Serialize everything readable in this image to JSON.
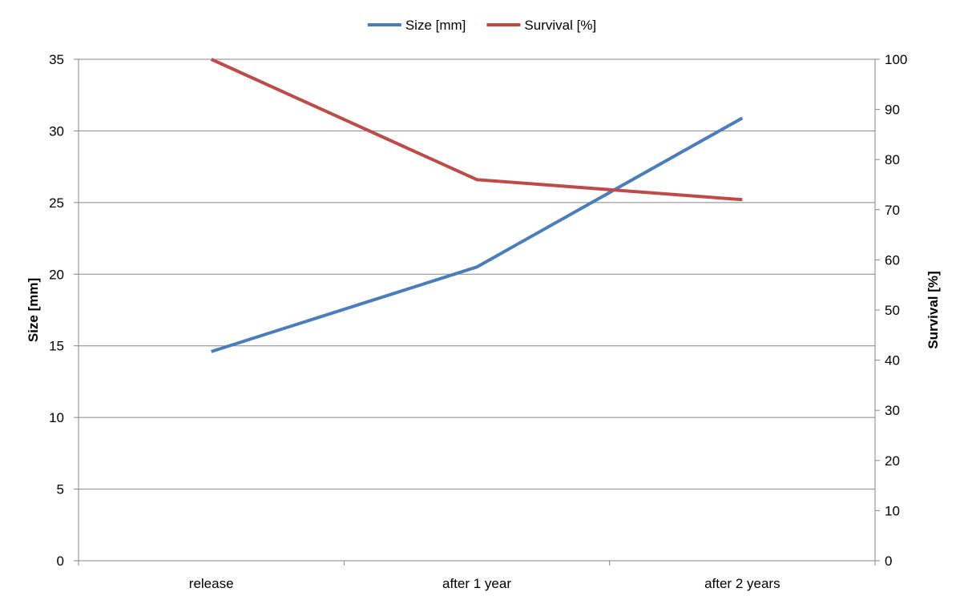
{
  "chart_data": {
    "type": "line",
    "title": "",
    "categories": [
      "release",
      "after 1 year",
      "after 2 years"
    ],
    "y_left": {
      "label": "Size [mm]",
      "ylim": [
        0,
        35
      ],
      "ticks": [
        "0",
        "5",
        "10",
        "15",
        "20",
        "25",
        "30",
        "35"
      ]
    },
    "y_right": {
      "label": "Survival [%]",
      "ylim": [
        0,
        100
      ],
      "ticks": [
        "0",
        "10",
        "20",
        "30",
        "40",
        "50",
        "60",
        "70",
        "80",
        "90",
        "100"
      ]
    },
    "series": [
      {
        "name": "Size [mm]",
        "axis": "left",
        "color": "#4a7ebb",
        "values": [
          14.6,
          20.5,
          30.9
        ]
      },
      {
        "name": "Survival [%]",
        "axis": "right",
        "color": "#be4b48",
        "values": [
          100,
          76,
          72
        ]
      }
    ],
    "grid": true,
    "legend_position": "top"
  }
}
